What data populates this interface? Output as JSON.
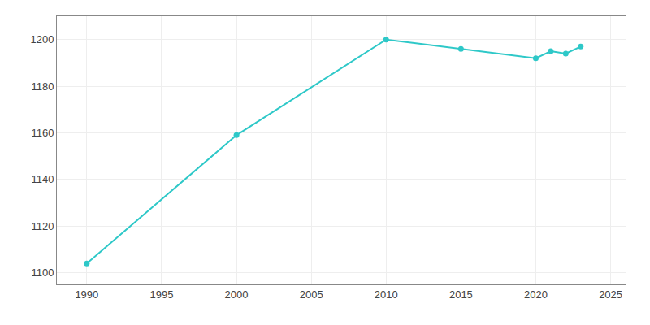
{
  "chart_data": {
    "type": "line",
    "x": [
      1990,
      2000,
      2010,
      2015,
      2020,
      2021,
      2022,
      2023
    ],
    "values": [
      1104,
      1159,
      1200,
      1196,
      1192,
      1195,
      1194,
      1197
    ],
    "color": "#2ec8c8",
    "marker": "circle",
    "xlim": [
      1988,
      2026
    ],
    "ylim": [
      1095,
      1210
    ],
    "xticks": [
      1990,
      1995,
      2000,
      2005,
      2010,
      2015,
      2020,
      2025
    ],
    "yticks": [
      1100,
      1120,
      1140,
      1160,
      1180,
      1200
    ],
    "grid": true
  }
}
